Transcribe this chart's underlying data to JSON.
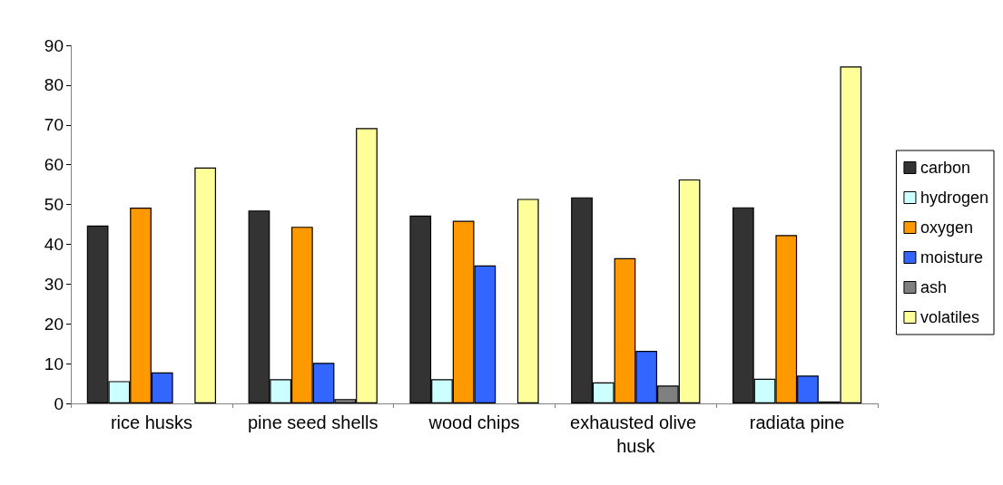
{
  "chart_data": {
    "type": "bar",
    "categories": [
      "rice husks",
      "pine seed shells",
      "wood chips",
      "exhausted olive husk",
      "radiata pine"
    ],
    "series": [
      {
        "name": "carbon",
        "color": "#333333",
        "values": [
          44.7,
          48.5,
          47.2,
          51.8,
          49.3
        ]
      },
      {
        "name": "hydrogen",
        "color": "#ccffff",
        "values": [
          5.6,
          6.1,
          6.1,
          5.3,
          6.2
        ]
      },
      {
        "name": "oxygen",
        "color": "#ff9900",
        "values": [
          49.2,
          44.4,
          45.9,
          36.5,
          42.3
        ]
      },
      {
        "name": "moisture",
        "color": "#3366ff",
        "values": [
          7.8,
          10.2,
          34.7,
          13.2,
          7.0
        ]
      },
      {
        "name": "ash",
        "color": "#808080",
        "values": [
          null,
          1.1,
          null,
          4.5,
          0.5
        ]
      },
      {
        "name": "volatiles",
        "color": "#ffff99",
        "values": [
          59.3,
          69.2,
          51.4,
          56.3,
          84.7
        ]
      }
    ],
    "ylim": [
      0,
      90
    ],
    "yticks": [
      0,
      10,
      20,
      30,
      40,
      50,
      60,
      70,
      80,
      90
    ],
    "grid": false,
    "legend": "right"
  }
}
